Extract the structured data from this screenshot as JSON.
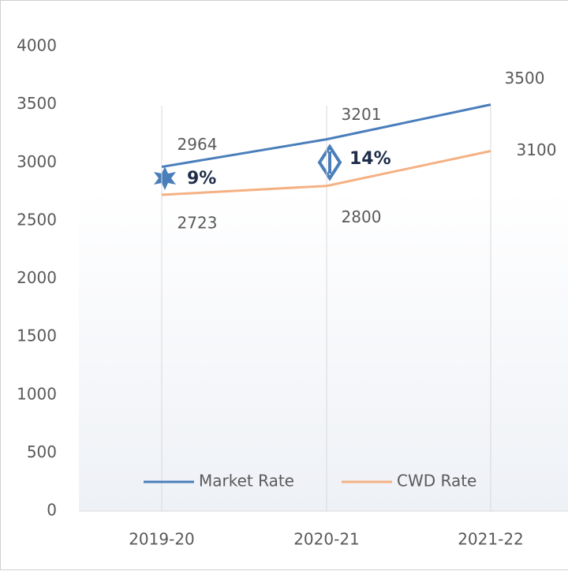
{
  "chart_data": {
    "type": "line",
    "categories": [
      "2019-20",
      "2020-21",
      "2021-22"
    ],
    "series": [
      {
        "name": "Market Rate",
        "color": "#4a7ebb",
        "values": [
          2964,
          3201,
          3500
        ]
      },
      {
        "name": "CWD Rate",
        "color": "#f4b183",
        "values": [
          2723,
          2800,
          3100
        ]
      }
    ],
    "ylim": [
      0,
      4000
    ],
    "yticks": [
      0,
      500,
      1000,
      1500,
      2000,
      2500,
      3000,
      3500,
      4000
    ],
    "annotations": [
      {
        "text": "9%"
      },
      {
        "text": "14%"
      }
    ],
    "legend": "bottom"
  }
}
